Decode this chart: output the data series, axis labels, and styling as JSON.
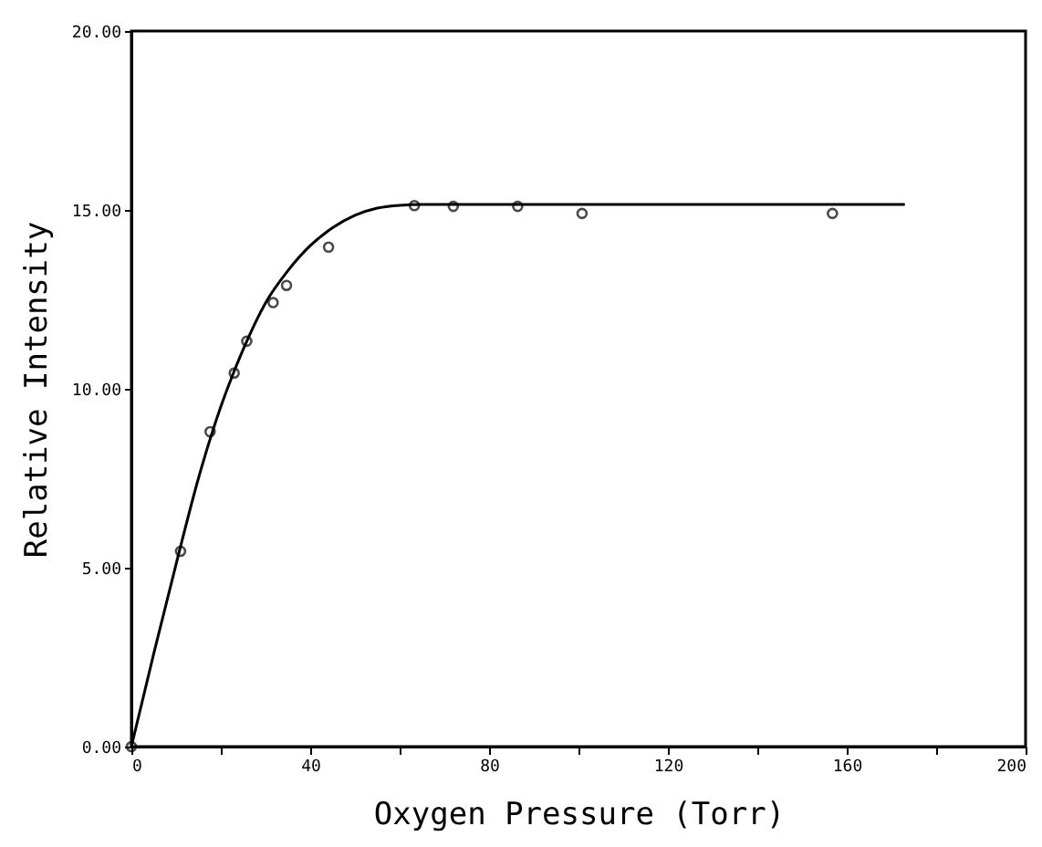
{
  "chart_data": {
    "type": "scatter",
    "xlabel": "Oxygen Pressure (Torr)",
    "ylabel": "Relative Intensity",
    "xlim": [
      0,
      200
    ],
    "ylim": [
      0,
      20
    ],
    "xticks": [
      0,
      {
        "value": 20,
        "label": null
      },
      40,
      {
        "value": 60,
        "label": null
      },
      80,
      {
        "value": 100,
        "label": null
      },
      120,
      {
        "value": 140,
        "label": null
      },
      160,
      {
        "value": 180,
        "label": null
      },
      200
    ],
    "yticks": [
      {
        "value": 0,
        "label": "0.00"
      },
      {
        "value": 5,
        "label": "5.00"
      },
      {
        "value": 10,
        "label": "10.00"
      },
      {
        "value": 15,
        "label": "15.00"
      },
      {
        "value": 20,
        "label": "20.00"
      }
    ],
    "grid": false,
    "series": [
      {
        "marker": "circle",
        "color": "#000000",
        "x": [
          0,
          11,
          17.6,
          23,
          25.8,
          31.7,
          34.7,
          44.1,
          63.3,
          72,
          86.4,
          100.8,
          156.8
        ],
        "values": [
          0,
          5.46,
          8.8,
          10.44,
          11.33,
          12.41,
          12.89,
          13.96,
          15.12,
          15.1,
          15.1,
          14.9,
          14.9
        ]
      },
      {
        "type": "line",
        "marker": "none",
        "line_style": "solid",
        "color": "#000000",
        "x": [
          0,
          5,
          10,
          15,
          20,
          25,
          30,
          35,
          40,
          45,
          50,
          55,
          60,
          65,
          173
        ],
        "values": [
          0,
          2.6,
          5.1,
          7.5,
          9.5,
          11.1,
          12.4,
          13.3,
          14.0,
          14.5,
          14.85,
          15.05,
          15.13,
          15.15,
          15.15
        ]
      }
    ]
  }
}
